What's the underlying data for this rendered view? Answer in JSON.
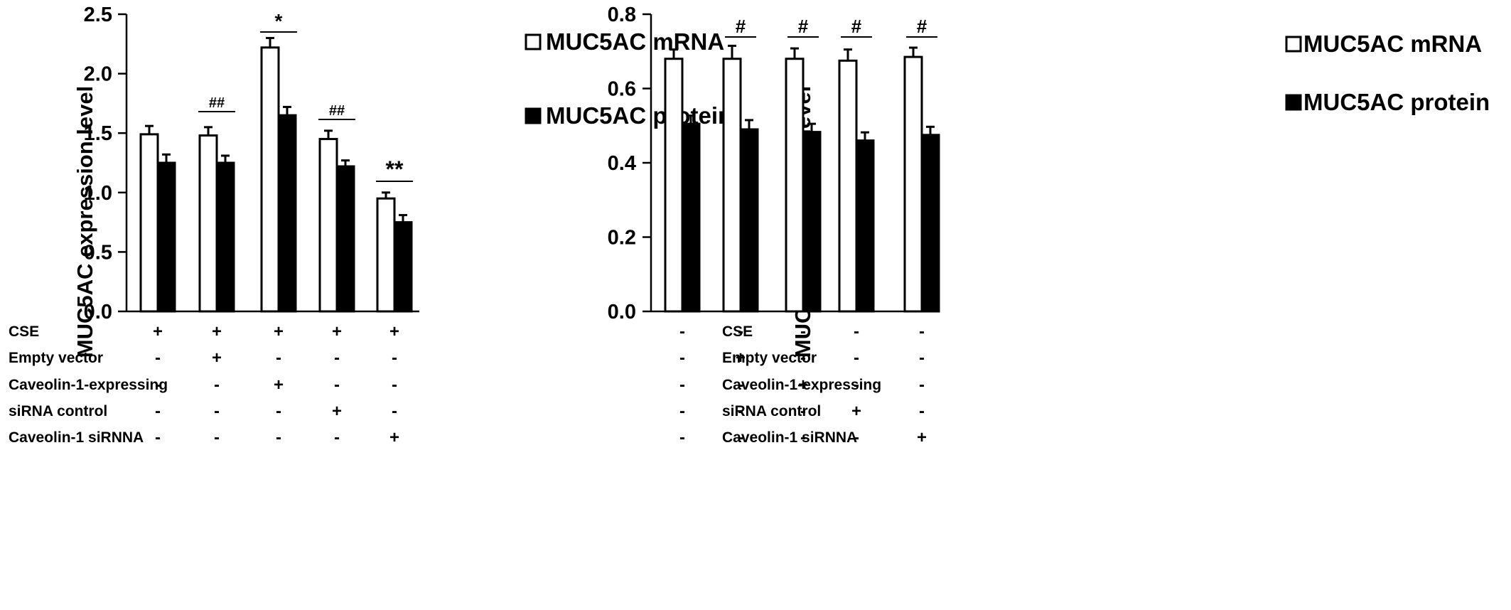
{
  "chart_data": [
    {
      "type": "bar",
      "ylabel": "MUC5AC expression level",
      "ylim": [
        0,
        2.5
      ],
      "yticks": [
        "0.0",
        "0.5",
        "1.0",
        "1.5",
        "2.0",
        "2.5"
      ],
      "legend_placement": "top-right",
      "series": [
        {
          "name": "MUC5AC mRNA",
          "fill": "#ffffff",
          "values": [
            1.49,
            1.48,
            2.22,
            1.45,
            0.95
          ],
          "errors": [
            0.07,
            0.07,
            0.08,
            0.07,
            0.05
          ]
        },
        {
          "name": "MUC5AC protein",
          "fill": "#000000",
          "values": [
            1.25,
            1.25,
            1.65,
            1.22,
            0.75
          ],
          "errors": [
            0.07,
            0.06,
            0.07,
            0.05,
            0.06
          ]
        }
      ],
      "significance": [
        "",
        "##",
        "*",
        "##",
        "**"
      ],
      "conditions": [
        {
          "label": "CSE",
          "marks": [
            "+",
            "+",
            "+",
            "+",
            "+"
          ]
        },
        {
          "label": "Empty vector",
          "marks": [
            "-",
            "+",
            "-",
            "-",
            "-"
          ]
        },
        {
          "label": "Caveolin-1-expressing",
          "marks": [
            "-",
            "-",
            "+",
            "-",
            "-"
          ]
        },
        {
          "label": "siRNA control",
          "marks": [
            "-",
            "-",
            "-",
            "+",
            "-"
          ]
        },
        {
          "label": "Caveolin-1 siRNNA",
          "marks": [
            "-",
            "-",
            "-",
            "-",
            "+"
          ]
        }
      ]
    },
    {
      "type": "bar",
      "ylabel": "MUC5AC expression level",
      "ylim": [
        0,
        0.8
      ],
      "yticks": [
        "0.0",
        "0.2",
        "0.4",
        "0.6",
        "0.8"
      ],
      "legend_placement": "top-right",
      "series": [
        {
          "name": "MUC5AC mRNA",
          "fill": "#ffffff",
          "values": [
            0.68,
            0.68,
            0.68,
            0.675,
            0.685
          ],
          "errors": [
            0.025,
            0.035,
            0.028,
            0.03,
            0.025
          ]
        },
        {
          "name": "MUC5AC protein",
          "fill": "#000000",
          "values": [
            0.505,
            0.49,
            0.483,
            0.46,
            0.475
          ],
          "errors": [
            0.022,
            0.025,
            0.022,
            0.022,
            0.022
          ]
        }
      ],
      "significance": [
        "",
        "#",
        "#",
        "#",
        "#"
      ],
      "conditions": [
        {
          "label": "CSE",
          "marks": [
            "-",
            "-",
            "-",
            "-",
            "-"
          ]
        },
        {
          "label": "Empty vector",
          "marks": [
            "-",
            "+",
            "-",
            "-",
            "-"
          ]
        },
        {
          "label": "Caveolin-1-expressing",
          "marks": [
            "-",
            "-",
            "+",
            "-",
            "-"
          ]
        },
        {
          "label": "siRNA control",
          "marks": [
            "-",
            "-",
            "-",
            "+",
            "-"
          ]
        },
        {
          "label": "Caveolin-1 siRNNA",
          "marks": [
            "-",
            "-",
            "-",
            "-",
            "+"
          ]
        }
      ]
    }
  ]
}
